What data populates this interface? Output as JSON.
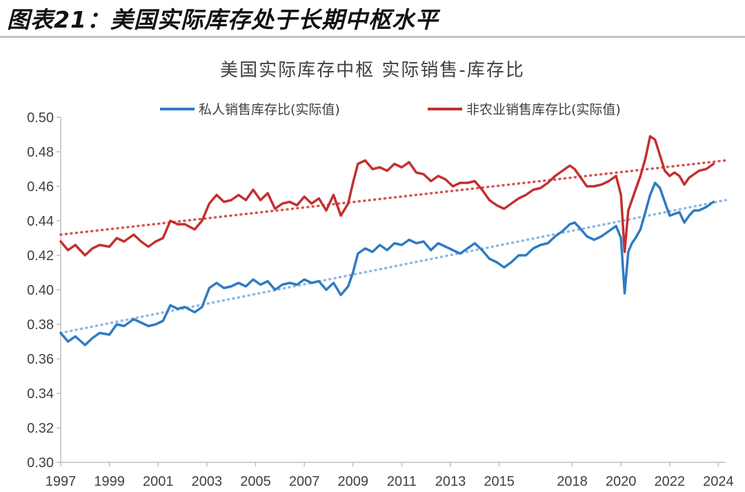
{
  "figure_caption": "图表21：美国实际库存处于长期中枢水平",
  "colors": {
    "private_series": "#2e7bc4",
    "nonfarm_series": "#c42f30",
    "axis": "#bfbfbf",
    "text": "#404040"
  },
  "chart_data": {
    "type": "line",
    "title": "美国实际库存中枢 实际销售-库存比",
    "legend_position": "top",
    "grid": false,
    "xlabel": "",
    "ylabel": "",
    "xlim": [
      1997.0,
      2024.3
    ],
    "ylim": [
      0.3,
      0.5
    ],
    "x_ticks": [
      "1997",
      "1999",
      "2001",
      "2003",
      "2005",
      "2007",
      "2009",
      "2011",
      "2013",
      "2015",
      "2018",
      "2020",
      "2022",
      "2024"
    ],
    "y_ticks": [
      "0.30",
      "0.32",
      "0.34",
      "0.36",
      "0.38",
      "0.40",
      "0.42",
      "0.44",
      "0.46",
      "0.48",
      "0.50"
    ],
    "series": [
      {
        "name": "私人销售库存比(实际值)",
        "color": "#2e7bc4",
        "style": "solid",
        "x": [
          1997.0,
          1997.3,
          1997.6,
          1998.0,
          1998.3,
          1998.6,
          1999.0,
          1999.3,
          1999.6,
          2000.0,
          2000.3,
          2000.6,
          2000.9,
          2001.2,
          2001.5,
          2001.8,
          2002.1,
          2002.5,
          2002.8,
          2003.1,
          2003.4,
          2003.7,
          2004.0,
          2004.3,
          2004.6,
          2004.9,
          2005.2,
          2005.5,
          2005.8,
          2006.1,
          2006.4,
          2006.7,
          2007.0,
          2007.3,
          2007.6,
          2007.9,
          2008.2,
          2008.5,
          2008.8,
          2009.0,
          2009.2,
          2009.5,
          2009.8,
          2010.1,
          2010.4,
          2010.7,
          2011.0,
          2011.3,
          2011.6,
          2011.9,
          2012.2,
          2012.5,
          2012.8,
          2013.1,
          2013.4,
          2013.7,
          2014.0,
          2014.3,
          2014.6,
          2014.9,
          2015.2,
          2015.5,
          2015.8,
          2016.1,
          2016.4,
          2016.7,
          2017.0,
          2017.3,
          2017.6,
          2017.9,
          2018.1,
          2018.3,
          2018.6,
          2018.9,
          2019.2,
          2019.5,
          2019.8,
          2020.0,
          2020.15,
          2020.3,
          2020.45,
          2020.6,
          2020.8,
          2021.0,
          2021.2,
          2021.4,
          2021.6,
          2021.8,
          2022.0,
          2022.2,
          2022.4,
          2022.6,
          2022.8,
          2023.0,
          2023.2,
          2023.5,
          2023.8
        ],
        "values": [
          0.375,
          0.37,
          0.373,
          0.368,
          0.372,
          0.375,
          0.374,
          0.38,
          0.379,
          0.383,
          0.381,
          0.379,
          0.38,
          0.382,
          0.391,
          0.389,
          0.39,
          0.387,
          0.39,
          0.401,
          0.404,
          0.401,
          0.402,
          0.404,
          0.402,
          0.406,
          0.403,
          0.405,
          0.4,
          0.403,
          0.404,
          0.403,
          0.406,
          0.404,
          0.405,
          0.4,
          0.404,
          0.397,
          0.402,
          0.41,
          0.421,
          0.424,
          0.422,
          0.426,
          0.423,
          0.427,
          0.426,
          0.429,
          0.427,
          0.428,
          0.423,
          0.427,
          0.425,
          0.423,
          0.421,
          0.424,
          0.427,
          0.423,
          0.418,
          0.416,
          0.413,
          0.416,
          0.42,
          0.42,
          0.424,
          0.426,
          0.427,
          0.431,
          0.434,
          0.438,
          0.439,
          0.436,
          0.431,
          0.429,
          0.431,
          0.434,
          0.437,
          0.43,
          0.398,
          0.422,
          0.427,
          0.43,
          0.435,
          0.445,
          0.455,
          0.462,
          0.459,
          0.451,
          0.443,
          0.444,
          0.445,
          0.439,
          0.443,
          0.446,
          0.446,
          0.448,
          0.451
        ]
      },
      {
        "name": "非农业销售库存比(实际值)",
        "color": "#c42f30",
        "style": "solid",
        "x": [
          1997.0,
          1997.3,
          1997.6,
          1998.0,
          1998.3,
          1998.6,
          1999.0,
          1999.3,
          1999.6,
          2000.0,
          2000.3,
          2000.6,
          2000.9,
          2001.2,
          2001.5,
          2001.8,
          2002.1,
          2002.5,
          2002.8,
          2003.1,
          2003.4,
          2003.7,
          2004.0,
          2004.3,
          2004.6,
          2004.9,
          2005.2,
          2005.5,
          2005.8,
          2006.1,
          2006.4,
          2006.7,
          2007.0,
          2007.3,
          2007.6,
          2007.9,
          2008.2,
          2008.5,
          2008.8,
          2009.0,
          2009.2,
          2009.5,
          2009.8,
          2010.1,
          2010.4,
          2010.7,
          2011.0,
          2011.3,
          2011.6,
          2011.9,
          2012.2,
          2012.5,
          2012.8,
          2013.1,
          2013.4,
          2013.7,
          2014.0,
          2014.3,
          2014.6,
          2014.9,
          2015.2,
          2015.5,
          2015.8,
          2016.1,
          2016.4,
          2016.7,
          2017.0,
          2017.3,
          2017.6,
          2017.9,
          2018.1,
          2018.3,
          2018.6,
          2018.9,
          2019.2,
          2019.5,
          2019.8,
          2020.0,
          2020.15,
          2020.3,
          2020.45,
          2020.6,
          2020.8,
          2021.0,
          2021.2,
          2021.4,
          2021.6,
          2021.8,
          2022.0,
          2022.2,
          2022.4,
          2022.6,
          2022.8,
          2023.0,
          2023.2,
          2023.5,
          2023.8
        ],
        "values": [
          0.428,
          0.423,
          0.426,
          0.42,
          0.424,
          0.426,
          0.425,
          0.43,
          0.428,
          0.432,
          0.428,
          0.425,
          0.428,
          0.43,
          0.44,
          0.438,
          0.438,
          0.435,
          0.44,
          0.45,
          0.455,
          0.451,
          0.452,
          0.455,
          0.452,
          0.458,
          0.452,
          0.456,
          0.447,
          0.45,
          0.451,
          0.449,
          0.454,
          0.45,
          0.453,
          0.446,
          0.455,
          0.443,
          0.45,
          0.462,
          0.473,
          0.475,
          0.47,
          0.471,
          0.469,
          0.473,
          0.471,
          0.474,
          0.468,
          0.467,
          0.463,
          0.466,
          0.464,
          0.46,
          0.462,
          0.462,
          0.463,
          0.458,
          0.452,
          0.449,
          0.447,
          0.45,
          0.453,
          0.455,
          0.458,
          0.459,
          0.462,
          0.466,
          0.469,
          0.472,
          0.47,
          0.466,
          0.46,
          0.46,
          0.461,
          0.463,
          0.466,
          0.455,
          0.422,
          0.446,
          0.452,
          0.458,
          0.466,
          0.476,
          0.489,
          0.487,
          0.478,
          0.469,
          0.466,
          0.468,
          0.466,
          0.461,
          0.465,
          0.467,
          0.469,
          0.47,
          0.473
        ]
      }
    ],
    "trendlines": [
      {
        "series": "私人销售库存比(实际值)",
        "color": "#8fb8e0",
        "style": "dotted",
        "x": [
          1997.0,
          2024.3
        ],
        "values": [
          0.375,
          0.452
        ]
      },
      {
        "series": "非农业销售库存比(实际值)",
        "color": "#d9534f",
        "style": "dotted",
        "x": [
          1997.0,
          2024.3
        ],
        "values": [
          0.432,
          0.475
        ]
      }
    ]
  }
}
